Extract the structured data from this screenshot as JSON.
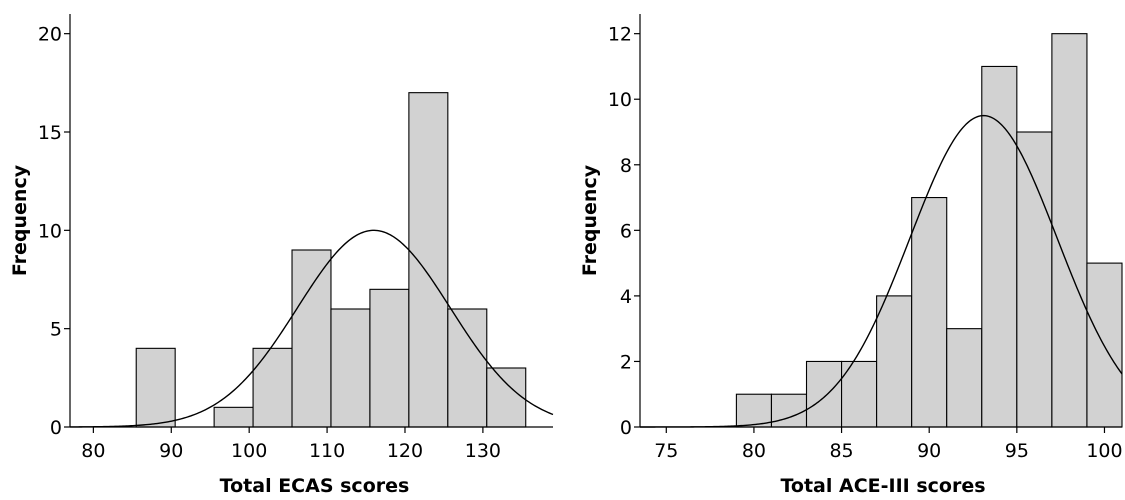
{
  "chart_data": [
    {
      "type": "bar",
      "title": "",
      "xlabel": "Total ECAS scores",
      "ylabel": "Frequency",
      "xlim": [
        77,
        139
      ],
      "ylim": [
        0,
        21
      ],
      "x_ticks": [
        "80",
        "90",
        "100",
        "110",
        "120",
        "130"
      ],
      "y_ticks": [
        "0",
        "5",
        "10",
        "15",
        "20"
      ],
      "bins": [
        {
          "start": 85.5,
          "end": 90.5,
          "value": 4
        },
        {
          "start": 95.5,
          "end": 100.5,
          "value": 1
        },
        {
          "start": 100.5,
          "end": 105.5,
          "value": 4
        },
        {
          "start": 105.5,
          "end": 110.5,
          "value": 9
        },
        {
          "start": 110.5,
          "end": 115.5,
          "value": 6
        },
        {
          "start": 115.5,
          "end": 120.5,
          "value": 7
        },
        {
          "start": 120.5,
          "end": 125.5,
          "value": 17
        },
        {
          "start": 125.5,
          "end": 130.5,
          "value": 6
        },
        {
          "start": 130.5,
          "end": 135.5,
          "value": 3
        }
      ],
      "normal_curve": {
        "mean": 116,
        "sd": 9.8,
        "peak": 10.0
      }
    },
    {
      "type": "bar",
      "title": "",
      "xlabel": "Total ACE-III scores",
      "ylabel": "Frequency",
      "xlim": [
        73.5,
        101
      ],
      "ylim": [
        0,
        12.6
      ],
      "x_ticks": [
        "75",
        "80",
        "85",
        "90",
        "95",
        "100"
      ],
      "y_ticks": [
        "0",
        "2",
        "4",
        "6",
        "8",
        "10",
        "12"
      ],
      "bins": [
        {
          "start": 79,
          "end": 81,
          "value": 1
        },
        {
          "start": 81,
          "end": 83,
          "value": 1
        },
        {
          "start": 83,
          "end": 85,
          "value": 2
        },
        {
          "start": 85,
          "end": 87,
          "value": 2
        },
        {
          "start": 87,
          "end": 89,
          "value": 4
        },
        {
          "start": 89,
          "end": 91,
          "value": 7
        },
        {
          "start": 91,
          "end": 93,
          "value": 3
        },
        {
          "start": 93,
          "end": 95,
          "value": 11
        },
        {
          "start": 95,
          "end": 97,
          "value": 9
        },
        {
          "start": 97,
          "end": 99,
          "value": 12
        },
        {
          "start": 99,
          "end": 101,
          "value": 5
        }
      ],
      "normal_curve": {
        "mean": 93.1,
        "sd": 4.2,
        "peak": 9.5
      }
    }
  ]
}
